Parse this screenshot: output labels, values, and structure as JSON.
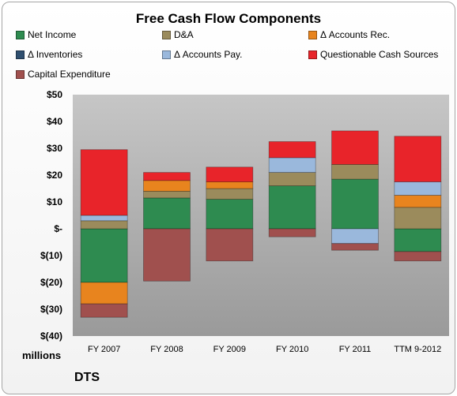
{
  "chart_data": {
    "type": "bar",
    "stacked": true,
    "title": "Free Cash Flow Components",
    "units_label": "millions",
    "company": "DTS",
    "categories": [
      "FY 2007",
      "FY 2008",
      "FY 2009",
      "FY 2010",
      "FY 2011",
      "TTM 9-2012"
    ],
    "ylim": [
      -40,
      50
    ],
    "yticks": [
      {
        "value": 50,
        "label": "$50"
      },
      {
        "value": 40,
        "label": "$40"
      },
      {
        "value": 30,
        "label": "$30"
      },
      {
        "value": 20,
        "label": "$20"
      },
      {
        "value": 10,
        "label": "$10"
      },
      {
        "value": 0,
        "label": "$-"
      },
      {
        "value": -10,
        "label": "$(10)"
      },
      {
        "value": -20,
        "label": "$(20)"
      },
      {
        "value": -30,
        "label": "$(30)"
      },
      {
        "value": -40,
        "label": "$(40)"
      }
    ],
    "legend_position": "top",
    "grid": false,
    "series": [
      {
        "name": "Net Income",
        "color": "#2e8b50",
        "values": [
          -20,
          11.5,
          11,
          16,
          18.5,
          -8.5
        ]
      },
      {
        "name": "D&A",
        "color": "#9b8b5c",
        "values": [
          3,
          2.5,
          4,
          5,
          5.5,
          8
        ]
      },
      {
        "name": "Δ Accounts Rec.",
        "color": "#e8841e",
        "values": [
          -8,
          4,
          2.5,
          0,
          0,
          4.5
        ]
      },
      {
        "name": "Δ Inventories",
        "color": "#2f4f6f",
        "values": [
          0,
          0,
          0,
          0,
          0,
          0
        ]
      },
      {
        "name": "Δ Accounts Pay.",
        "color": "#9ab8dc",
        "values": [
          2,
          0,
          0,
          5.5,
          -5.5,
          5
        ]
      },
      {
        "name": "Questionable Cash Sources",
        "color": "#e8242a",
        "values": [
          24.5,
          3,
          5.5,
          6,
          12.5,
          17
        ]
      },
      {
        "name": "Capital Expenditure",
        "color": "#a0504e",
        "values": [
          -5,
          -19.5,
          -12,
          -3,
          -2.5,
          -3.5
        ]
      }
    ]
  }
}
